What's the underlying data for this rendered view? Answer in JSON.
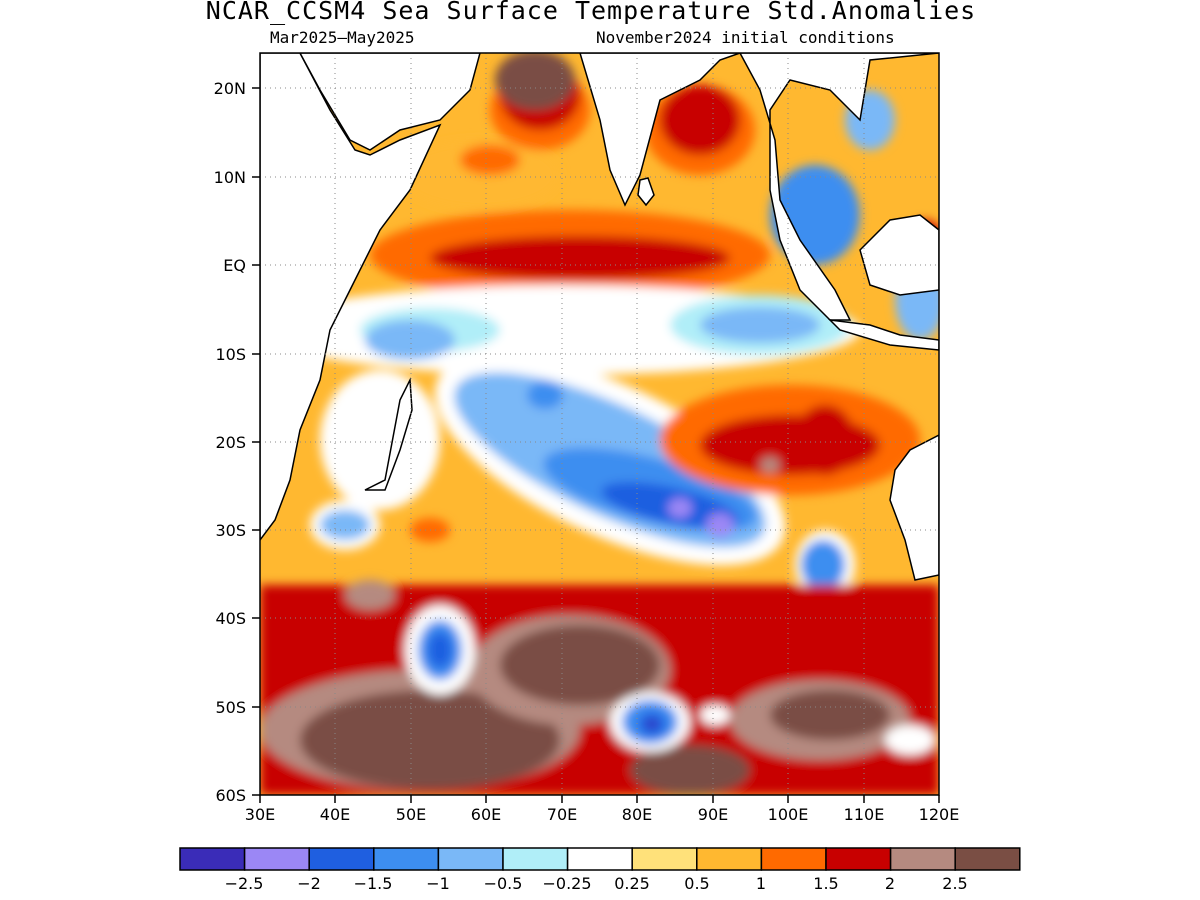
{
  "header": {
    "title": "NCAR_CCSM4 Sea Surface Temperature Std.Anomalies",
    "forecast_period": "Mar2025–May2025",
    "initial_conditions": "November2024 initial conditions"
  },
  "map": {
    "lat_labels": [
      "20N",
      "10N",
      "EQ",
      "10S",
      "20S",
      "30S",
      "40S",
      "50S",
      "60S"
    ],
    "lon_labels": [
      "30E",
      "40E",
      "50E",
      "60E",
      "70E",
      "80E",
      "90E",
      "100E",
      "110E",
      "120E"
    ],
    "lon_range": [
      30,
      120
    ],
    "lat_range": [
      -60,
      24
    ],
    "gridlines": "dotted"
  },
  "colorbar": {
    "labels": [
      "−2.5",
      "−2",
      "−1.5",
      "−1",
      "−0.5",
      "−0.25",
      "0.25",
      "0.5",
      "1",
      "1.5",
      "2",
      "2.5"
    ],
    "colors": [
      "#3a2cb8",
      "#9b87f5",
      "#1f5fe0",
      "#3d8ef0",
      "#7ab8f7",
      "#b0eef8",
      "#ffffff",
      "#ffe17a",
      "#ffb830",
      "#ff6a00",
      "#c80000",
      "#b58a80",
      "#7a4e44"
    ]
  }
}
